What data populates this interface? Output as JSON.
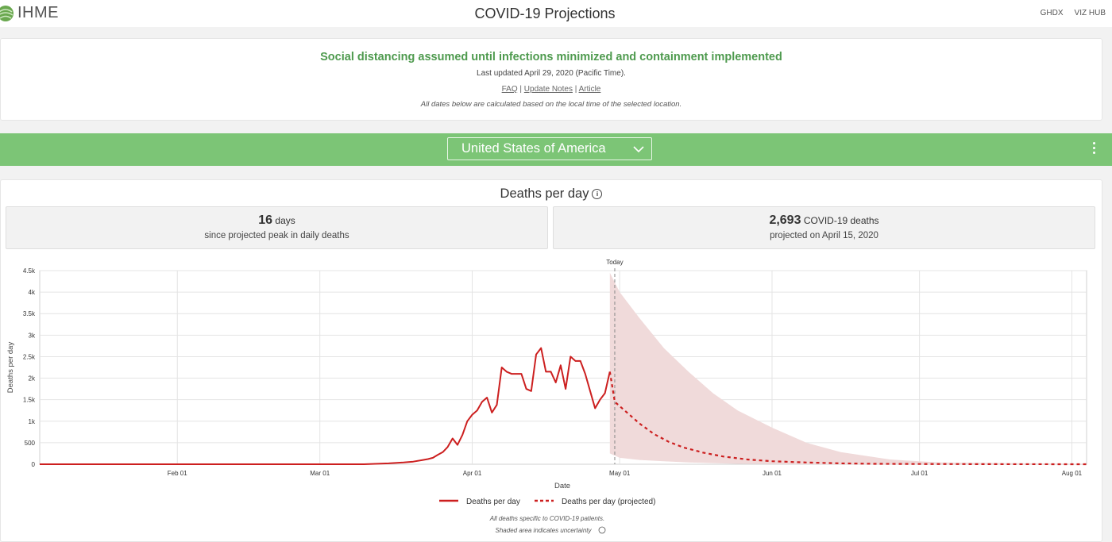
{
  "header": {
    "logo_text": "IHME",
    "title": "COVID-19 Projections",
    "nav": [
      "GHDX",
      "VIZ HUB"
    ]
  },
  "info": {
    "headline": "Social distancing assumed until infections minimized and containment implemented",
    "updated": "Last updated April 29, 2020 (Pacific Time).",
    "links": [
      "FAQ",
      "Update Notes",
      "Article"
    ],
    "note": "All dates below are calculated based on the local time of the selected location."
  },
  "location": {
    "selected": "United States of America"
  },
  "colors": {
    "brand_green": "#7cc576",
    "headline_green": "#4e9a4e",
    "series_red": "#cc1f1f",
    "uncertainty_fill": "#f0dada"
  },
  "panel": {
    "title": "Deaths per day",
    "stat1": {
      "value": "16",
      "unit": "days",
      "desc": "since projected peak in daily deaths"
    },
    "stat2": {
      "value": "2,693",
      "unit": "COVID-19 deaths",
      "desc": "projected on April 15, 2020"
    }
  },
  "chart_data": {
    "type": "line",
    "xlabel": "Date",
    "ylabel": "Deaths per day",
    "ylim": [
      0,
      4500
    ],
    "xlim": [
      "2020-01-04",
      "2020-08-04"
    ],
    "yticks": [
      0,
      500,
      1000,
      1500,
      2000,
      2500,
      3000,
      3500,
      4000,
      4500
    ],
    "ytick_labels": [
      "0",
      "500",
      "1k",
      "1.5k",
      "2k",
      "2.5k",
      "3k",
      "3.5k",
      "4k",
      "4.5k"
    ],
    "xticks": [
      "2020-02-01",
      "2020-03-01",
      "2020-04-01",
      "2020-05-01",
      "2020-06-01",
      "2020-07-01",
      "2020-08-01"
    ],
    "xtick_labels": [
      "Feb 01",
      "Mar 01",
      "Apr 01",
      "May 01",
      "Jun 01",
      "Jul 01",
      "Aug 01"
    ],
    "today_label": "Today",
    "today_date": "2020-04-30",
    "grid": true,
    "legend_position": "bottom",
    "series": [
      {
        "name": "Deaths per day",
        "style": "solid",
        "x": [
          "2020-01-04",
          "2020-03-01",
          "2020-03-10",
          "2020-03-15",
          "2020-03-18",
          "2020-03-20",
          "2020-03-22",
          "2020-03-23",
          "2020-03-24",
          "2020-03-25",
          "2020-03-26",
          "2020-03-27",
          "2020-03-28",
          "2020-03-29",
          "2020-03-30",
          "2020-03-31",
          "2020-04-01",
          "2020-04-02",
          "2020-04-03",
          "2020-04-04",
          "2020-04-05",
          "2020-04-06",
          "2020-04-07",
          "2020-04-08",
          "2020-04-09",
          "2020-04-10",
          "2020-04-11",
          "2020-04-12",
          "2020-04-13",
          "2020-04-14",
          "2020-04-15",
          "2020-04-16",
          "2020-04-17",
          "2020-04-18",
          "2020-04-19",
          "2020-04-20",
          "2020-04-21",
          "2020-04-22",
          "2020-04-23",
          "2020-04-24",
          "2020-04-25",
          "2020-04-26",
          "2020-04-27",
          "2020-04-28",
          "2020-04-29"
        ],
        "y": [
          0,
          0,
          0,
          20,
          40,
          60,
          100,
          120,
          150,
          220,
          280,
          400,
          600,
          450,
          680,
          1000,
          1150,
          1250,
          1450,
          1550,
          1200,
          1380,
          2250,
          2150,
          2100,
          2100,
          2100,
          1750,
          1700,
          2550,
          2700,
          2150,
          2150,
          1900,
          2300,
          1750,
          2500,
          2400,
          2400,
          2100,
          1700,
          1300,
          1500,
          1650,
          2150
        ]
      },
      {
        "name": "Deaths per day (projected)",
        "style": "dashed",
        "x": [
          "2020-04-29",
          "2020-04-30",
          "2020-05-01",
          "2020-05-03",
          "2020-05-05",
          "2020-05-08",
          "2020-05-11",
          "2020-05-14",
          "2020-05-18",
          "2020-05-22",
          "2020-05-27",
          "2020-06-01",
          "2020-06-08",
          "2020-06-15",
          "2020-06-22",
          "2020-07-01",
          "2020-07-15",
          "2020-08-04"
        ],
        "y": [
          2150,
          1450,
          1350,
          1150,
          950,
          700,
          520,
          390,
          270,
          180,
          110,
          70,
          40,
          20,
          10,
          5,
          2,
          0
        ]
      }
    ],
    "uncertainty": {
      "x": [
        "2020-04-29",
        "2020-05-01",
        "2020-05-05",
        "2020-05-10",
        "2020-05-15",
        "2020-05-20",
        "2020-05-25",
        "2020-06-01",
        "2020-06-08",
        "2020-06-15",
        "2020-06-25",
        "2020-07-05",
        "2020-08-04"
      ],
      "upper": [
        4450,
        4000,
        3400,
        2700,
        2150,
        1650,
        1250,
        850,
        500,
        280,
        110,
        40,
        10
      ],
      "lower": [
        250,
        150,
        100,
        70,
        40,
        25,
        10,
        5,
        0,
        0,
        0,
        0,
        0
      ]
    },
    "footnotes": [
      "All deaths specific to COVID-19 patients.",
      "Shaded area indicates uncertainty"
    ]
  }
}
